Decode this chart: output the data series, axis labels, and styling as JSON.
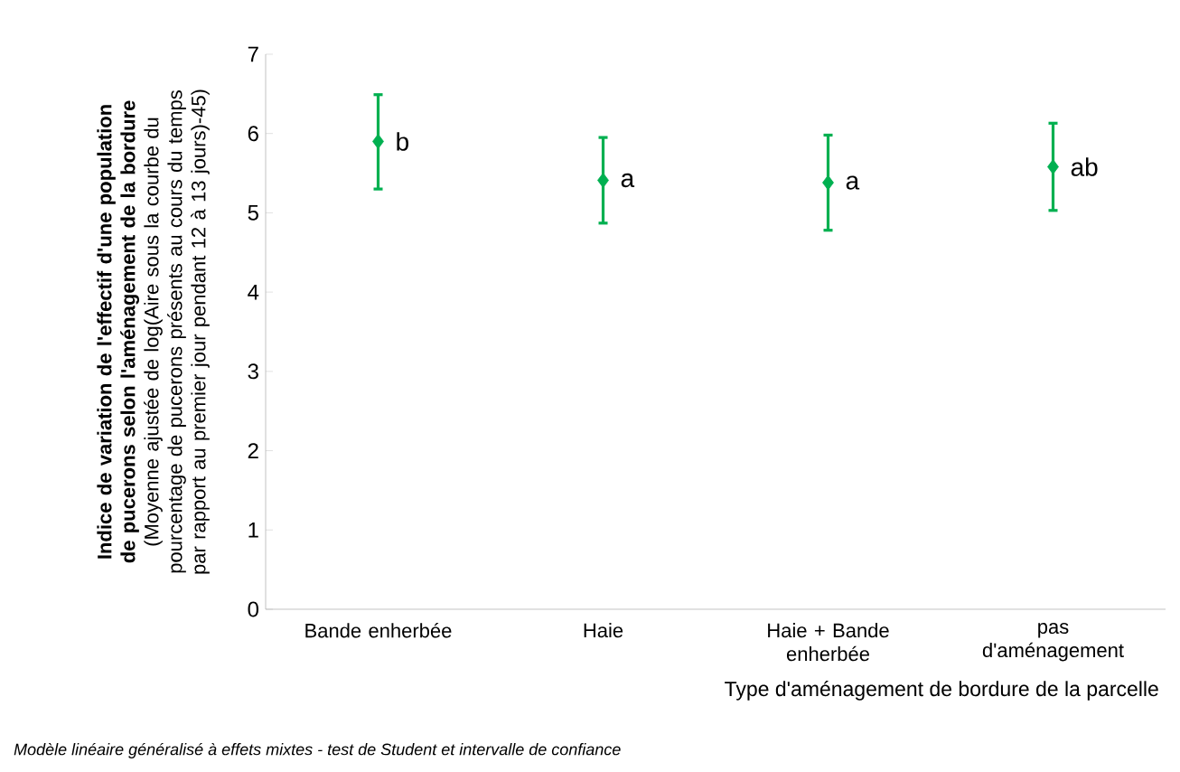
{
  "chart_data": {
    "type": "scatter",
    "xlabel": "Type d'aménagement de bordure de la parcelle",
    "ylabel": "**Indice de variation de l'effectif d'une population de pucerons selon l'aménagement de la bordure** (Moyenne ajustée de  log(Aire sous la courbe du pourcentage de pucerons présents au cours du temps par rapport au premier jour pendant 12 à 13 jours)-45)",
    "categories": [
      "Bande enherbée",
      "Haie",
      "Haie + Bande enherbée",
      "pas d'aménagement"
    ],
    "values": [
      5.9,
      5.41,
      5.38,
      5.58
    ],
    "errors": [
      [
        5.3,
        6.49
      ],
      [
        4.87,
        5.95
      ],
      [
        4.78,
        5.98
      ],
      [
        5.03,
        6.13
      ]
    ],
    "color": "#00b050",
    "marker": "diamond",
    "ylim": [
      0,
      7
    ],
    "yticks": [
      0,
      1,
      2,
      3,
      4,
      5,
      6,
      7
    ],
    "annotations": [
      {
        "text": "b",
        "x": "Bande enherbée",
        "y": 5.9
      },
      {
        "text": "a",
        "x": "Haie",
        "y": 5.41
      },
      {
        "text": "a",
        "x": "Haie + Bande enherbée",
        "y": 5.38
      },
      {
        "text": "ab",
        "x": "pas d'aménagement",
        "y": 5.58
      },
      "Modèle linéaire généralisé à effets mixtes - test de Student et intervalle de confiance"
    ]
  }
}
